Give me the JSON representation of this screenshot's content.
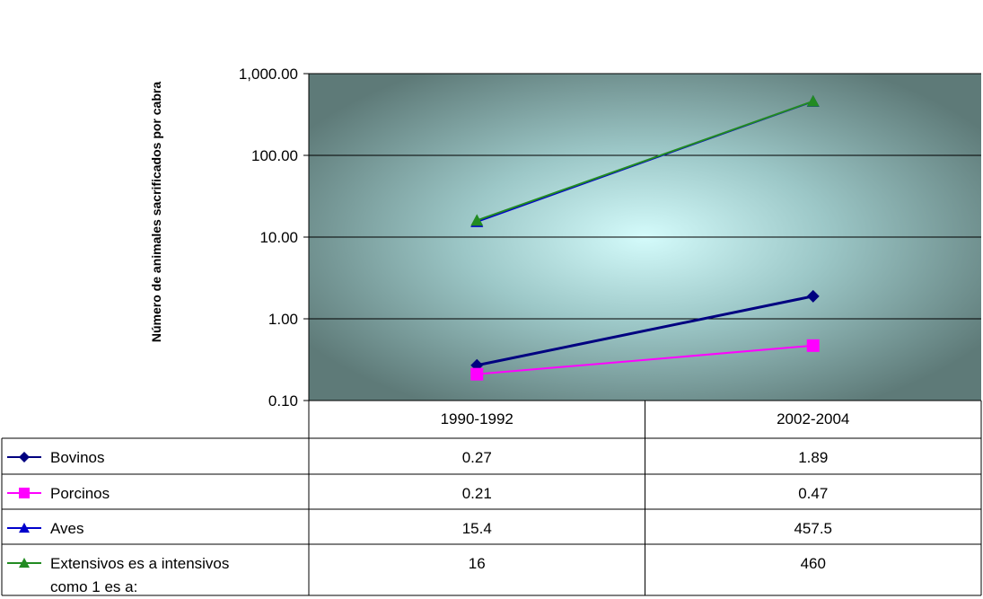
{
  "chart_data": {
    "type": "line",
    "ylabel": "Número de animales sacrificados por cabra",
    "yscale": "log",
    "ylim": [
      0.1,
      1000
    ],
    "yticks": [
      "1,000.00",
      "100.00",
      "10.00",
      "1.00",
      "0.10"
    ],
    "ytick_values": [
      1000,
      100,
      10,
      1,
      0.1
    ],
    "grid": true,
    "legend": "data-table",
    "background": "radial gradient, light cyan center to dark slate gray edges",
    "categories": [
      "1990-1992",
      "2002-2004"
    ],
    "series": [
      {
        "name": "Bovinos",
        "values": [
          0.27,
          1.89
        ],
        "labels": [
          "0.27",
          "1.89"
        ],
        "color": "#000080",
        "marker": "diamond"
      },
      {
        "name": "Porcinos",
        "values": [
          0.21,
          0.47
        ],
        "labels": [
          "0.21",
          "0.47"
        ],
        "color": "#ff00ff",
        "marker": "square"
      },
      {
        "name": "Aves",
        "values": [
          15.4,
          457.5
        ],
        "labels": [
          "15.4",
          "457.5"
        ],
        "color": "#0000cc",
        "marker": "triangle"
      },
      {
        "name": "Extensivos es a intensivos",
        "name_line2": "como 1 es a:",
        "values": [
          16,
          460
        ],
        "labels": [
          "16",
          "460"
        ],
        "color": "#228b22",
        "marker": "triangle"
      }
    ]
  }
}
